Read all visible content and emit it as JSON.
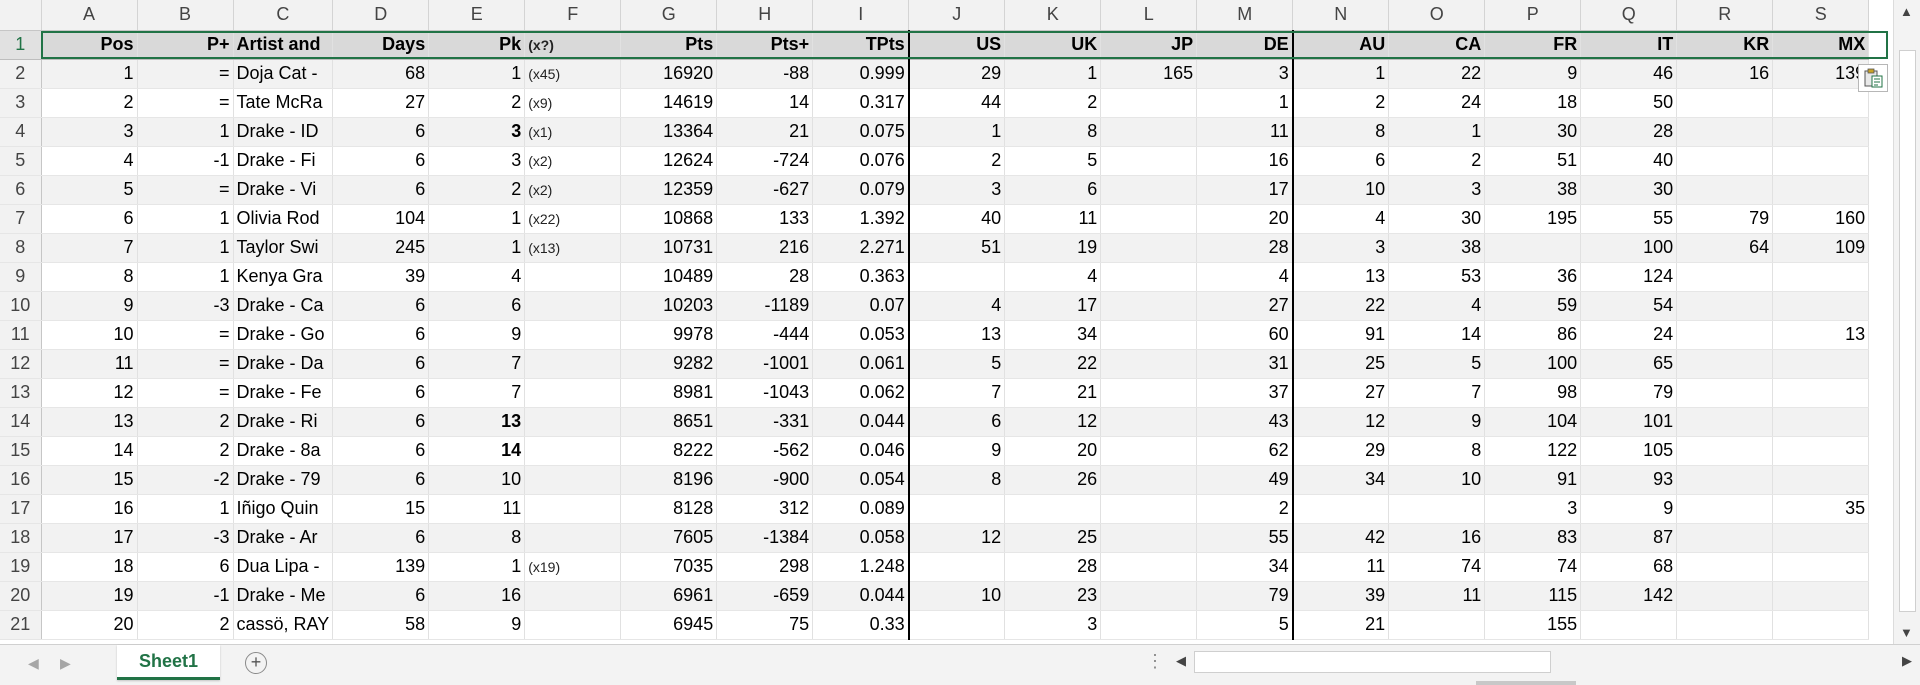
{
  "columns": [
    "A",
    "B",
    "C",
    "D",
    "E",
    "F",
    "G",
    "H",
    "I",
    "J",
    "K",
    "L",
    "M",
    "N",
    "O",
    "P",
    "Q",
    "R",
    "S"
  ],
  "header_row": {
    "row_num": "1",
    "cells": [
      "Pos",
      "P+",
      "Artist and",
      "Days",
      "Pk",
      "(x?)",
      "Pts",
      "Pts+",
      "TPts",
      "US",
      "UK",
      "JP",
      "DE",
      "AU",
      "CA",
      "FR",
      "IT",
      "KR",
      "MX"
    ]
  },
  "rows": [
    {
      "row_num": "2",
      "cells": [
        "1",
        "=",
        "Doja Cat -",
        "68",
        "1",
        "(x45)",
        "16920",
        "-88",
        "0.999",
        "29",
        "1",
        "165",
        "3",
        "1",
        "22",
        "9",
        "46",
        "16",
        "139"
      ]
    },
    {
      "row_num": "3",
      "cells": [
        "2",
        "=",
        "Tate McRa",
        "27",
        "2",
        "(x9)",
        "14619",
        "14",
        "0.317",
        "44",
        "2",
        "",
        "1",
        "2",
        "24",
        "18",
        "50",
        "",
        ""
      ]
    },
    {
      "row_num": "4",
      "cells": [
        "3",
        "1",
        "Drake - ID",
        "6",
        "3",
        "(x1)",
        "13364",
        "21",
        "0.075",
        "1",
        "8",
        "",
        "11",
        "8",
        "1",
        "30",
        "28",
        "",
        ""
      ]
    },
    {
      "row_num": "5",
      "cells": [
        "4",
        "-1",
        "Drake - Fi",
        "6",
        "3",
        "(x2)",
        "12624",
        "-724",
        "0.076",
        "2",
        "5",
        "",
        "16",
        "6",
        "2",
        "51",
        "40",
        "",
        ""
      ]
    },
    {
      "row_num": "6",
      "cells": [
        "5",
        "=",
        "Drake - Vi",
        "6",
        "2",
        "(x2)",
        "12359",
        "-627",
        "0.079",
        "3",
        "6",
        "",
        "17",
        "10",
        "3",
        "38",
        "30",
        "",
        ""
      ]
    },
    {
      "row_num": "7",
      "cells": [
        "6",
        "1",
        "Olivia Rod",
        "104",
        "1",
        "(x22)",
        "10868",
        "133",
        "1.392",
        "40",
        "11",
        "",
        "20",
        "4",
        "30",
        "195",
        "55",
        "79",
        "160"
      ]
    },
    {
      "row_num": "8",
      "cells": [
        "7",
        "1",
        "Taylor Swi",
        "245",
        "1",
        "(x13)",
        "10731",
        "216",
        "2.271",
        "51",
        "19",
        "",
        "28",
        "3",
        "38",
        "",
        "100",
        "64",
        "109"
      ]
    },
    {
      "row_num": "9",
      "cells": [
        "8",
        "1",
        "Kenya Gra",
        "39",
        "4",
        "",
        "10489",
        "28",
        "0.363",
        "",
        "4",
        "",
        "4",
        "13",
        "53",
        "36",
        "124",
        "",
        ""
      ]
    },
    {
      "row_num": "10",
      "cells": [
        "9",
        "-3",
        "Drake - Ca",
        "6",
        "6",
        "",
        "10203",
        "-1189",
        "0.07",
        "4",
        "17",
        "",
        "27",
        "22",
        "4",
        "59",
        "54",
        "",
        ""
      ]
    },
    {
      "row_num": "11",
      "cells": [
        "10",
        "=",
        "Drake - Go",
        "6",
        "9",
        "",
        "9978",
        "-444",
        "0.053",
        "13",
        "34",
        "",
        "60",
        "91",
        "14",
        "86",
        "24",
        "",
        "13"
      ]
    },
    {
      "row_num": "12",
      "cells": [
        "11",
        "=",
        "Drake - Da",
        "6",
        "7",
        "",
        "9282",
        "-1001",
        "0.061",
        "5",
        "22",
        "",
        "31",
        "25",
        "5",
        "100",
        "65",
        "",
        ""
      ]
    },
    {
      "row_num": "13",
      "cells": [
        "12",
        "=",
        "Drake - Fe",
        "6",
        "7",
        "",
        "8981",
        "-1043",
        "0.062",
        "7",
        "21",
        "",
        "37",
        "27",
        "7",
        "98",
        "79",
        "",
        ""
      ]
    },
    {
      "row_num": "14",
      "cells": [
        "13",
        "2",
        "Drake - Ri",
        "6",
        "13",
        "",
        "8651",
        "-331",
        "0.044",
        "6",
        "12",
        "",
        "43",
        "12",
        "9",
        "104",
        "101",
        "",
        ""
      ]
    },
    {
      "row_num": "15",
      "cells": [
        "14",
        "2",
        "Drake - 8a",
        "6",
        "14",
        "",
        "8222",
        "-562",
        "0.046",
        "9",
        "20",
        "",
        "62",
        "29",
        "8",
        "122",
        "105",
        "",
        ""
      ]
    },
    {
      "row_num": "16",
      "cells": [
        "15",
        "-2",
        "Drake - 79",
        "6",
        "10",
        "",
        "8196",
        "-900",
        "0.054",
        "8",
        "26",
        "",
        "49",
        "34",
        "10",
        "91",
        "93",
        "",
        ""
      ]
    },
    {
      "row_num": "17",
      "cells": [
        "16",
        "1",
        "Iñigo Quin",
        "15",
        "11",
        "",
        "8128",
        "312",
        "0.089",
        "",
        "",
        "",
        "2",
        "",
        "",
        "3",
        "9",
        "",
        "35"
      ]
    },
    {
      "row_num": "18",
      "cells": [
        "17",
        "-3",
        "Drake - Ar",
        "6",
        "8",
        "",
        "7605",
        "-1384",
        "0.058",
        "12",
        "25",
        "",
        "55",
        "42",
        "16",
        "83",
        "87",
        "",
        ""
      ]
    },
    {
      "row_num": "19",
      "cells": [
        "18",
        "6",
        "Dua Lipa -",
        "139",
        "1",
        "(x19)",
        "7035",
        "298",
        "1.248",
        "",
        "28",
        "",
        "34",
        "11",
        "74",
        "74",
        "68",
        "",
        ""
      ]
    },
    {
      "row_num": "20",
      "cells": [
        "19",
        "-1",
        "Drake - Me",
        "6",
        "16",
        "",
        "6961",
        "-659",
        "0.044",
        "10",
        "23",
        "",
        "79",
        "39",
        "11",
        "115",
        "142",
        "",
        ""
      ]
    },
    {
      "row_num": "21",
      "cells": [
        "20",
        "2",
        "cassö, RAY",
        "58",
        "9",
        "",
        "6945",
        "75",
        "0.33",
        "",
        "3",
        "",
        "5",
        "21",
        "",
        "155",
        "",
        "",
        ""
      ]
    }
  ],
  "bold_peak_rows": [
    "4",
    "14",
    "15"
  ],
  "sheet_tab": "Sheet1",
  "icons": {
    "paste_options": "paste-options-icon",
    "add_sheet": "plus-icon",
    "scroll_up": "chevron-up-icon",
    "scroll_down": "chevron-down-icon",
    "scroll_left": "chevron-left-icon",
    "scroll_right": "chevron-right-icon"
  },
  "colors": {
    "accent": "#217346",
    "header_fill": "#d9d9d9",
    "band_fill": "#f2f2f2"
  }
}
